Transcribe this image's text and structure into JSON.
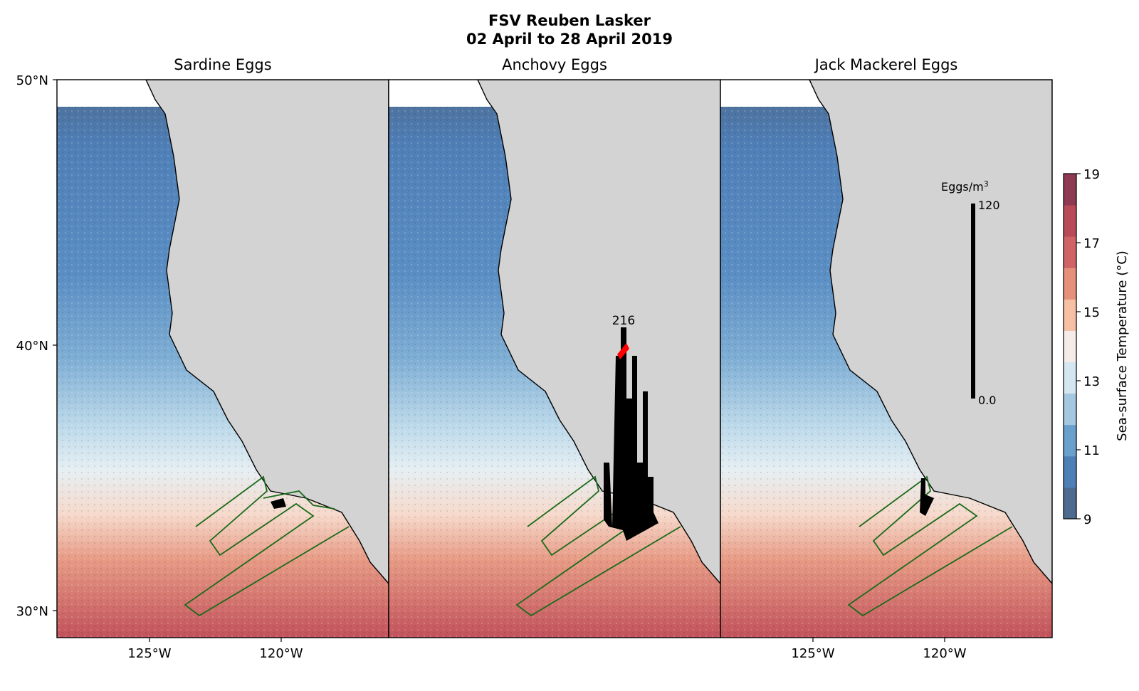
{
  "figure": {
    "title_line1": "FSV Reuben Lasker",
    "title_line2": "02 April to 28 April 2019"
  },
  "panels": [
    {
      "title": "Sardine Eggs"
    },
    {
      "title": "Anchovy Eggs",
      "max_label": "216"
    },
    {
      "title": "Jack Mackerel Eggs"
    }
  ],
  "axes": {
    "lat_labels": [
      "50°N",
      "40°N",
      "30°N"
    ],
    "lon_labels": [
      "125°W",
      "120°W"
    ],
    "lat_range": [
      29,
      50
    ],
    "lon_range": [
      -128.5,
      -116
    ]
  },
  "scale_bar": {
    "label": "Eggs/m",
    "label_sup": "3",
    "max": "120",
    "min": "0.0"
  },
  "colorbar": {
    "label": "Sea-surface Temperature (°C)",
    "ticks": [
      "19",
      "17",
      "15",
      "13",
      "11",
      "9"
    ],
    "range": [
      9,
      19
    ],
    "colors": [
      "#4d6b8f",
      "#4f7fb7",
      "#6aa0cc",
      "#a3c8e0",
      "#d4e6ef",
      "#f5ecea",
      "#f6c0a5",
      "#e5907b",
      "#cf6366",
      "#b94a59",
      "#8e3a52"
    ]
  },
  "colors": {
    "land": "#d3d3d3",
    "transect": "#1a6b1a",
    "eggs": "#000000",
    "max_marker": "#ff0000"
  }
}
